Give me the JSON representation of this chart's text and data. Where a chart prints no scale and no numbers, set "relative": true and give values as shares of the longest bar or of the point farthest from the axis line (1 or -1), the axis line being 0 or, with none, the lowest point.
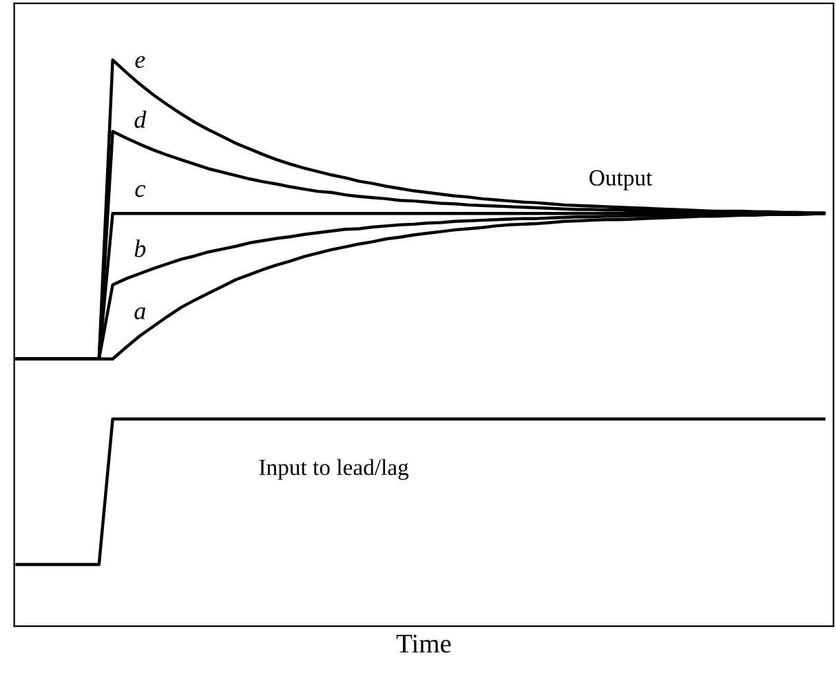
{
  "chart_data": {
    "type": "line",
    "relative": true,
    "xlabel": "Time",
    "tick_labels": false,
    "grid": false,
    "legend": false,
    "marker": "none",
    "line_style": "solid",
    "categories": [
      null,
      null,
      null,
      null,
      null,
      null,
      null,
      null,
      null,
      null,
      null,
      null,
      null,
      null,
      null,
      null,
      null,
      null,
      null,
      null,
      null,
      null,
      null,
      null,
      null,
      null,
      null,
      null,
      null,
      null,
      null,
      null,
      null,
      null,
      null,
      null,
      null,
      null,
      null,
      null,
      null,
      null,
      null,
      null,
      null,
      null,
      null,
      null,
      null,
      null,
      null,
      null,
      null,
      null,
      null,
      null,
      null,
      null,
      null,
      null
    ],
    "annotations": [
      "Output",
      "Input to lead/lag"
    ],
    "series": [
      {
        "name": "e",
        "color": "#000000",
        "values": [
          0.472,
          0.472,
          0.472,
          0.472,
          0.472,
          0.472,
          0.472,
          1.0,
          0.978,
          0.957,
          0.938,
          0.921,
          0.905,
          0.89,
          0.877,
          0.865,
          0.853,
          0.843,
          0.833,
          0.824,
          0.816,
          0.809,
          0.803,
          0.797,
          0.792,
          0.786,
          0.782,
          0.777,
          0.773,
          0.769,
          0.766,
          0.763,
          0.76,
          0.758,
          0.755,
          0.753,
          0.751,
          0.749,
          0.748,
          0.746,
          0.744,
          0.743,
          0.742,
          0.741,
          0.74,
          0.739,
          0.738,
          0.737,
          0.736,
          0.735,
          0.734,
          0.733,
          0.733,
          0.733,
          0.732,
          0.732,
          0.731,
          0.731,
          0.73,
          0.73
        ]
      },
      {
        "name": "d",
        "color": "#000000",
        "values": [
          0.472,
          0.472,
          0.472,
          0.472,
          0.472,
          0.472,
          0.472,
          0.874,
          0.862,
          0.851,
          0.841,
          0.832,
          0.824,
          0.816,
          0.808,
          0.802,
          0.796,
          0.79,
          0.785,
          0.781,
          0.776,
          0.772,
          0.768,
          0.766,
          0.762,
          0.759,
          0.757,
          0.755,
          0.752,
          0.751,
          0.749,
          0.747,
          0.746,
          0.744,
          0.743,
          0.742,
          0.741,
          0.74,
          0.739,
          0.738,
          0.737,
          0.736,
          0.736,
          0.735,
          0.735,
          0.734,
          0.734,
          0.733,
          0.733,
          0.733,
          0.733,
          0.732,
          0.732,
          0.731,
          0.731,
          0.731,
          0.73,
          0.73,
          0.73,
          0.729
        ]
      },
      {
        "name": "c",
        "color": "#000000",
        "values": [
          0.472,
          0.472,
          0.472,
          0.472,
          0.472,
          0.472,
          0.472,
          0.729,
          0.729,
          0.729,
          0.729,
          0.729,
          0.729,
          0.729,
          0.729,
          0.729,
          0.729,
          0.729,
          0.729,
          0.729,
          0.729,
          0.729,
          0.729,
          0.729,
          0.729,
          0.729,
          0.729,
          0.729,
          0.729,
          0.729,
          0.729,
          0.729,
          0.729,
          0.729,
          0.729,
          0.729,
          0.729,
          0.729,
          0.729,
          0.729,
          0.729,
          0.729,
          0.729,
          0.729,
          0.729,
          0.729,
          0.729,
          0.729,
          0.729,
          0.729,
          0.729,
          0.729,
          0.729,
          0.729,
          0.729,
          0.729,
          0.729,
          0.729,
          0.729,
          0.729
        ]
      },
      {
        "name": "b",
        "color": "#000000",
        "values": [
          0.472,
          0.472,
          0.472,
          0.472,
          0.472,
          0.472,
          0.472,
          0.603,
          0.614,
          0.623,
          0.632,
          0.64,
          0.648,
          0.654,
          0.661,
          0.666,
          0.671,
          0.677,
          0.681,
          0.685,
          0.688,
          0.692,
          0.695,
          0.698,
          0.701,
          0.702,
          0.705,
          0.707,
          0.709,
          0.71,
          0.712,
          0.713,
          0.715,
          0.716,
          0.717,
          0.718,
          0.719,
          0.72,
          0.72,
          0.721,
          0.722,
          0.723,
          0.723,
          0.724,
          0.724,
          0.725,
          0.725,
          0.726,
          0.726,
          0.726,
          0.727,
          0.727,
          0.727,
          0.727,
          0.727,
          0.727,
          0.728,
          0.728,
          0.728,
          0.729
        ]
      },
      {
        "name": "a",
        "color": "#000000",
        "values": [
          0.472,
          0.472,
          0.472,
          0.472,
          0.472,
          0.472,
          0.472,
          0.472,
          0.493,
          0.513,
          0.53,
          0.547,
          0.563,
          0.576,
          0.588,
          0.6,
          0.612,
          0.621,
          0.63,
          0.638,
          0.645,
          0.653,
          0.659,
          0.665,
          0.67,
          0.675,
          0.679,
          0.684,
          0.687,
          0.691,
          0.694,
          0.697,
          0.7,
          0.702,
          0.704,
          0.707,
          0.709,
          0.71,
          0.711,
          0.713,
          0.715,
          0.716,
          0.717,
          0.718,
          0.718,
          0.719,
          0.72,
          0.721,
          0.722,
          0.723,
          0.724,
          0.724,
          0.725,
          0.726,
          0.726,
          0.727,
          0.727,
          0.727,
          0.728,
          0.729
        ]
      },
      {
        "color": "#000000",
        "values": [
          0.109,
          0.109,
          0.109,
          0.109,
          0.109,
          0.109,
          0.109,
          0.366,
          0.366,
          0.366,
          0.366,
          0.366,
          0.366,
          0.366,
          0.366,
          0.366,
          0.366,
          0.366,
          0.366,
          0.366,
          0.366,
          0.366,
          0.366,
          0.366,
          0.366,
          0.366,
          0.366,
          0.366,
          0.366,
          0.366,
          0.366,
          0.366,
          0.366,
          0.366,
          0.366,
          0.366,
          0.366,
          0.366,
          0.366,
          0.366,
          0.366,
          0.366,
          0.366,
          0.366,
          0.366,
          0.366,
          0.366,
          0.366,
          0.366,
          0.366,
          0.366,
          0.366,
          0.366,
          0.366,
          0.366,
          0.366,
          0.366,
          0.366,
          0.366,
          0.366
        ]
      }
    ]
  }
}
